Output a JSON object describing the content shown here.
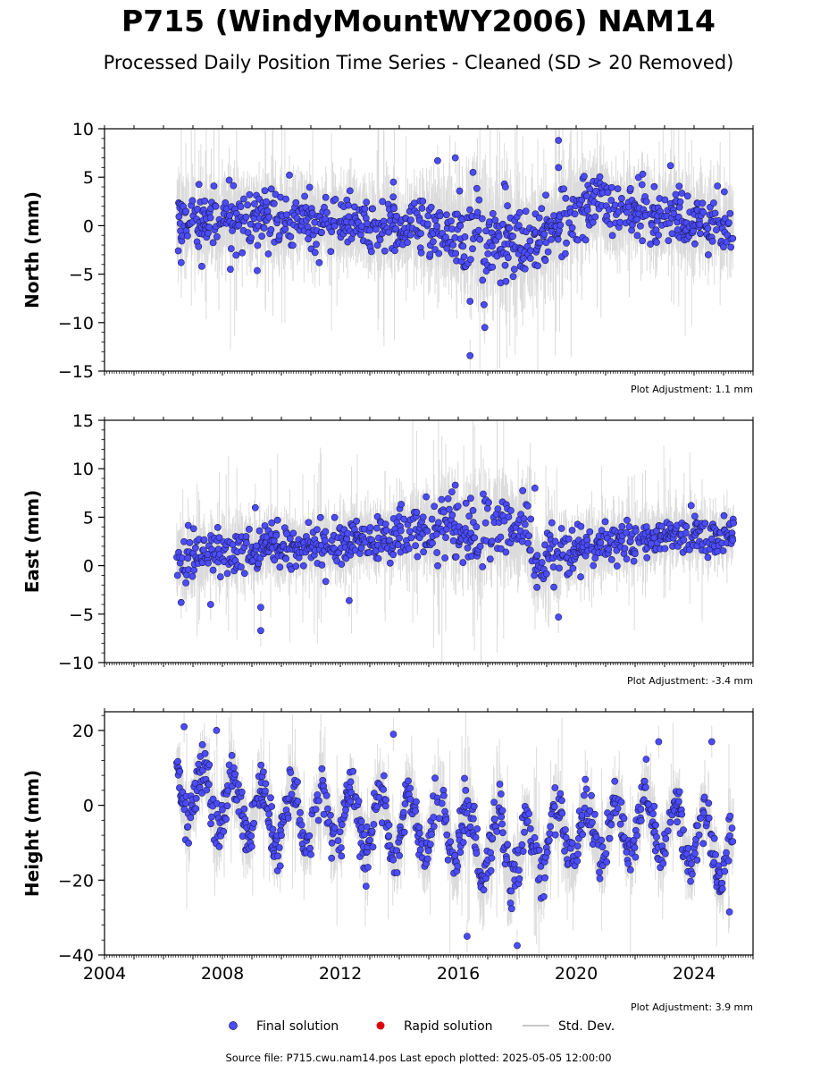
{
  "title": "P715 (WindyMountWY2006) NAM14",
  "subtitle": "Processed Daily Position Time Series - Cleaned (SD > 20 Removed)",
  "source": "Source file: P715.cwu.nam14.pos  Last epoch plotted: 2025-05-05 12:00:00",
  "colors": {
    "final": "#4b4bff",
    "final_edge": "#1a1a4a",
    "rapid": "#e00000",
    "std": "#bfbfbf"
  },
  "legend": {
    "final": "Final solution",
    "rapid": "Rapid solution",
    "std": "Std. Dev."
  },
  "chart_data": [
    {
      "type": "scatter",
      "ylabel": "North (mm)",
      "adjustment": "Plot Adjustment: 1.1 mm",
      "xlim": [
        2004,
        2026
      ],
      "ylim": [
        -15,
        10
      ],
      "xticks": [
        2004,
        2008,
        2012,
        2016,
        2020,
        2024
      ],
      "yticks": [
        10,
        5,
        0,
        -5,
        -10,
        -15
      ],
      "data_start": 2006.45,
      "data_end": 2025.34,
      "series": [
        {
          "name": "Final solution",
          "x": [
            2006.5,
            2007.5,
            2008.5,
            2009.5,
            2010.5,
            2011.5,
            2012.5,
            2013.5,
            2014.5,
            2015.5,
            2016.5,
            2017.5,
            2018.5,
            2019.5,
            2020.5,
            2021.5,
            2022.5,
            2023.5,
            2024.5,
            2025.3
          ],
          "y": [
            0.5,
            0.5,
            0.8,
            0.3,
            0.3,
            0.5,
            0.0,
            -0.2,
            -0.3,
            -0.5,
            -1.0,
            -1.2,
            -2.0,
            1.0,
            2.5,
            1.5,
            1.0,
            1.0,
            0.5,
            0.0
          ],
          "scatter": [
            2.0,
            2.0,
            2.0,
            2.0,
            2.0,
            2.0,
            2.0,
            2.0,
            2.0,
            2.6,
            3.0,
            3.0,
            2.6,
            2.2,
            2.0,
            2.0,
            2.0,
            2.0,
            2.0,
            1.8
          ],
          "outliers": [
            [
              2006.6,
              -3.8
            ],
            [
              2007.3,
              -4.2
            ],
            [
              2013.8,
              4.5
            ],
            [
              2015.3,
              6.7
            ],
            [
              2015.9,
              7.0
            ],
            [
              2016.5,
              5.5
            ],
            [
              2016.4,
              -7.8
            ],
            [
              2016.4,
              -13.4
            ],
            [
              2016.9,
              -10.5
            ],
            [
              2017.6,
              4.0
            ],
            [
              2019.4,
              8.8
            ],
            [
              2019.4,
              6.0
            ],
            [
              2023.2,
              6.2
            ]
          ]
        }
      ]
    },
    {
      "type": "scatter",
      "ylabel": "East (mm)",
      "adjustment": "Plot Adjustment: -3.4 mm",
      "xlim": [
        2004,
        2026
      ],
      "ylim": [
        -10,
        15
      ],
      "xticks": [
        2004,
        2008,
        2012,
        2016,
        2020,
        2024
      ],
      "yticks": [
        15,
        10,
        5,
        0,
        -5,
        -10
      ],
      "data_start": 2006.45,
      "data_end": 2025.34,
      "series": [
        {
          "name": "Final solution",
          "x": [
            2006.5,
            2007.5,
            2008.5,
            2009.5,
            2010.5,
            2011.5,
            2012.5,
            2013.5,
            2014.5,
            2015.5,
            2016.5,
            2017.5,
            2018.4,
            2018.6,
            2019.5,
            2020.5,
            2021.5,
            2022.5,
            2023.5,
            2024.5,
            2025.3
          ],
          "y": [
            0.5,
            1.0,
            1.5,
            1.8,
            2.0,
            2.2,
            2.5,
            3.0,
            3.5,
            3.7,
            3.5,
            3.8,
            4.0,
            0.0,
            1.0,
            2.0,
            2.5,
            3.0,
            3.0,
            3.0,
            3.2
          ],
          "scatter": [
            1.8,
            1.5,
            1.5,
            1.5,
            1.5,
            1.5,
            1.5,
            1.5,
            1.8,
            2.2,
            2.5,
            2.3,
            2.2,
            1.8,
            1.6,
            1.5,
            1.4,
            1.4,
            1.4,
            1.4,
            1.2
          ],
          "outliers": [
            [
              2006.6,
              -3.8
            ],
            [
              2007.6,
              -4.0
            ],
            [
              2009.3,
              -4.3
            ],
            [
              2009.3,
              -6.7
            ],
            [
              2012.3,
              -3.6
            ],
            [
              2015.9,
              8.3
            ],
            [
              2018.6,
              8.0
            ],
            [
              2019.4,
              -5.3
            ],
            [
              2023.9,
              6.2
            ]
          ]
        }
      ]
    },
    {
      "type": "scatter",
      "ylabel": "Height (mm)",
      "adjustment": "Plot Adjustment: 3.9 mm",
      "xlim": [
        2004,
        2026
      ],
      "ylim": [
        -40,
        25
      ],
      "xticks": [
        2004,
        2008,
        2012,
        2016,
        2020,
        2024
      ],
      "yticks": [
        20,
        0,
        -20,
        -40
      ],
      "data_start": 2006.45,
      "data_end": 2025.34,
      "series": [
        {
          "name": "Final solution",
          "x": [
            2006.5,
            2007.5,
            2008.5,
            2009.5,
            2010.5,
            2011.5,
            2012.5,
            2013.5,
            2014.5,
            2015.5,
            2016.5,
            2017.5,
            2018.5,
            2019.5,
            2020.5,
            2021.5,
            2022.5,
            2023.5,
            2024.5,
            2025.3
          ],
          "y": [
            5.0,
            2.0,
            0.0,
            -4.0,
            -3.0,
            -4.0,
            -3.0,
            -5.0,
            -5.0,
            -6.0,
            -10.0,
            -13.0,
            -12.0,
            -8.0,
            -8.0,
            -6.0,
            -5.0,
            -7.0,
            -10.0,
            -14.0
          ],
          "seasonal_amplitude": 8.0,
          "scatter": [
            4.0,
            4.0,
            4.0,
            4.0,
            4.0,
            4.0,
            4.0,
            4.0,
            4.0,
            4.5,
            5.0,
            5.0,
            4.5,
            4.0,
            4.0,
            4.0,
            4.0,
            4.0,
            4.0,
            4.0
          ],
          "outliers": [
            [
              2006.7,
              21.0
            ],
            [
              2007.8,
              20.0
            ],
            [
              2013.8,
              19.0
            ],
            [
              2016.3,
              -35.0
            ],
            [
              2018.0,
              -37.5
            ],
            [
              2022.8,
              17.0
            ],
            [
              2024.6,
              17.0
            ],
            [
              2025.2,
              -28.5
            ]
          ]
        }
      ]
    }
  ]
}
